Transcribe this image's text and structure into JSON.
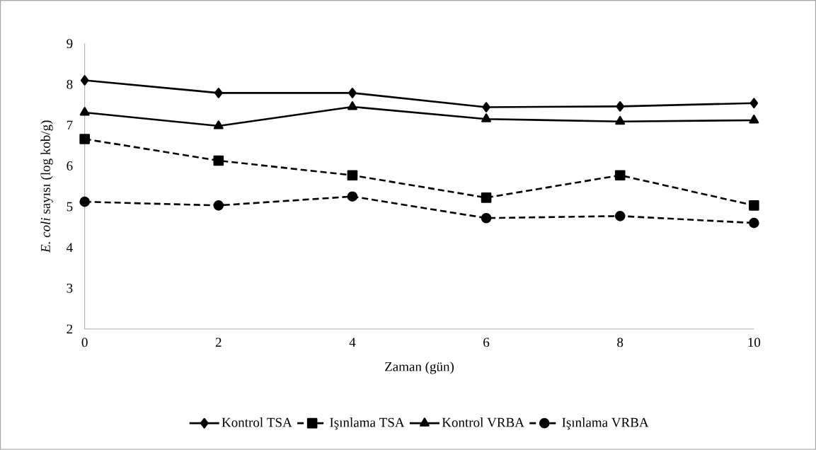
{
  "chart_data": {
    "type": "line",
    "xlabel": "Zaman (gün)",
    "ylabel": "*E. coli* sayısı (log kob/g)",
    "x": [
      0,
      2,
      4,
      6,
      8,
      10
    ],
    "xlim": [
      0,
      10
    ],
    "xticks": [
      0,
      2,
      4,
      6,
      8,
      10
    ],
    "ylim": [
      2,
      9
    ],
    "yticks": [
      2,
      3,
      4,
      5,
      6,
      7,
      8,
      9
    ],
    "grid": false,
    "legend": "bottom",
    "series": [
      {
        "name": "Kontrol TSA",
        "color": "#000000",
        "marker": "diamond",
        "line_style": "solid",
        "values": [
          8.1,
          7.79,
          7.79,
          7.44,
          7.46,
          7.54
        ]
      },
      {
        "name": "Işınlama TSA",
        "color": "#000000",
        "marker": "square",
        "line_style": "dashed",
        "values": [
          6.66,
          6.13,
          5.77,
          5.22,
          5.77,
          5.03
        ]
      },
      {
        "name": "Kontrol VRBA",
        "color": "#000000",
        "marker": "triangle",
        "line_style": "solid",
        "values": [
          7.31,
          6.98,
          7.45,
          7.15,
          7.09,
          7.12
        ]
      },
      {
        "name": "Işınlama VRBA",
        "color": "#000000",
        "marker": "circle",
        "line_style": "dashed",
        "values": [
          5.12,
          5.03,
          5.25,
          4.72,
          4.77,
          4.6
        ]
      }
    ]
  }
}
